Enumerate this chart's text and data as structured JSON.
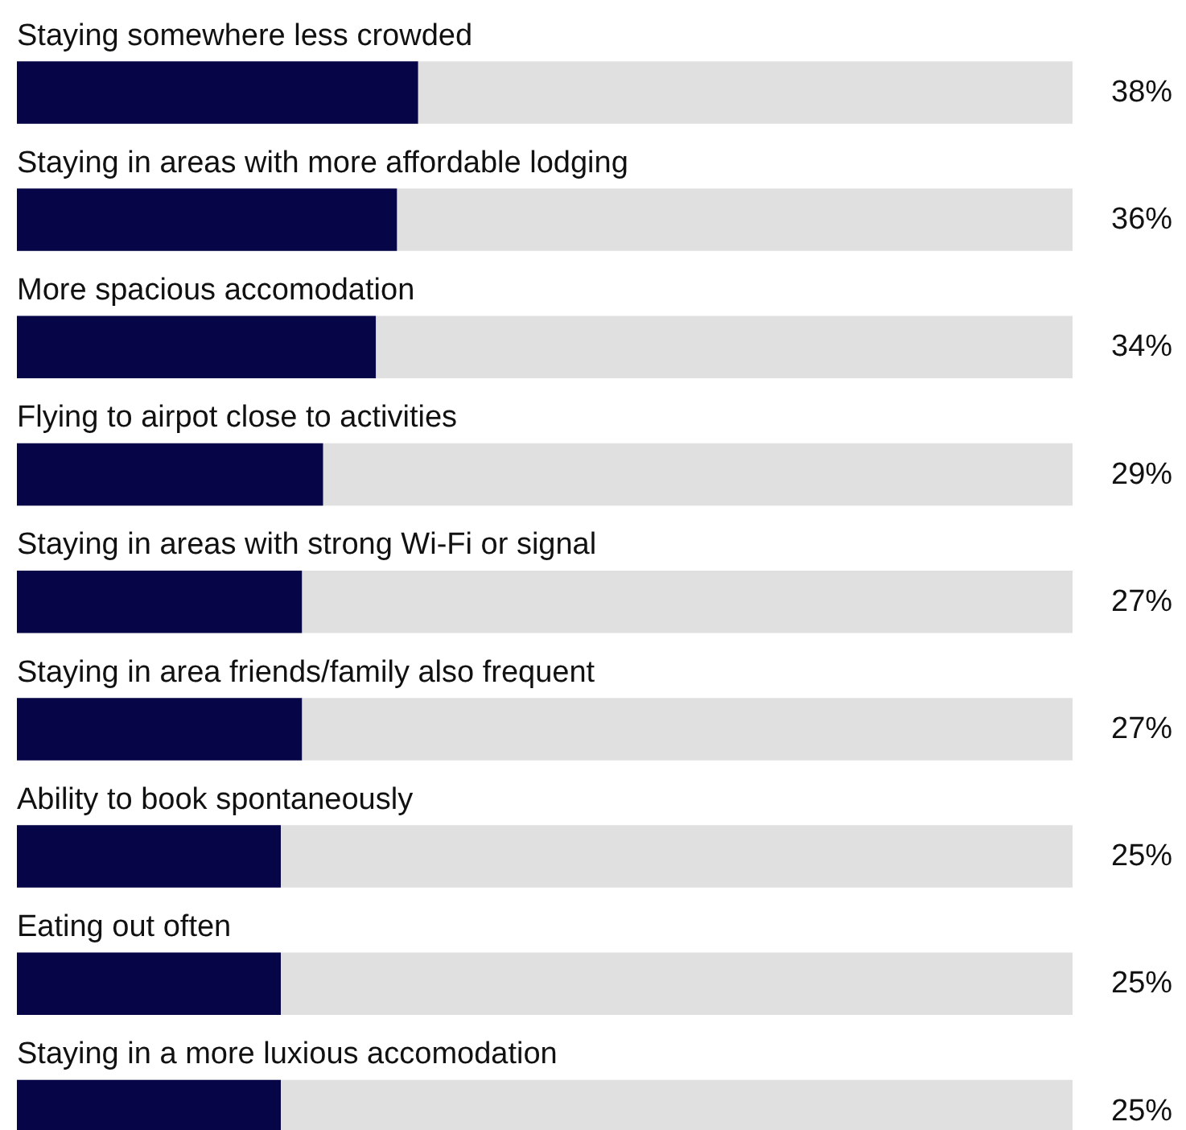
{
  "chart_data": {
    "type": "bar",
    "orientation": "horizontal",
    "categories": [
      "Staying somewhere less crowded",
      "Staying in areas with more affordable lodging",
      "More spacious accomodation",
      "Flying to airpot close to activities",
      "Staying in areas with strong Wi-Fi or signal",
      "Staying in area friends/family also frequent",
      "Ability to book spontaneously",
      "Eating out often",
      "Staying in a more luxious accomodation"
    ],
    "values": [
      38,
      36,
      34,
      29,
      27,
      27,
      25,
      25,
      25
    ],
    "value_labels": [
      "38%",
      "36%",
      "34%",
      "29%",
      "27%",
      "27%",
      "25%",
      "25%",
      "25%"
    ],
    "color": "#050548",
    "xlim": [
      0,
      100
    ]
  }
}
